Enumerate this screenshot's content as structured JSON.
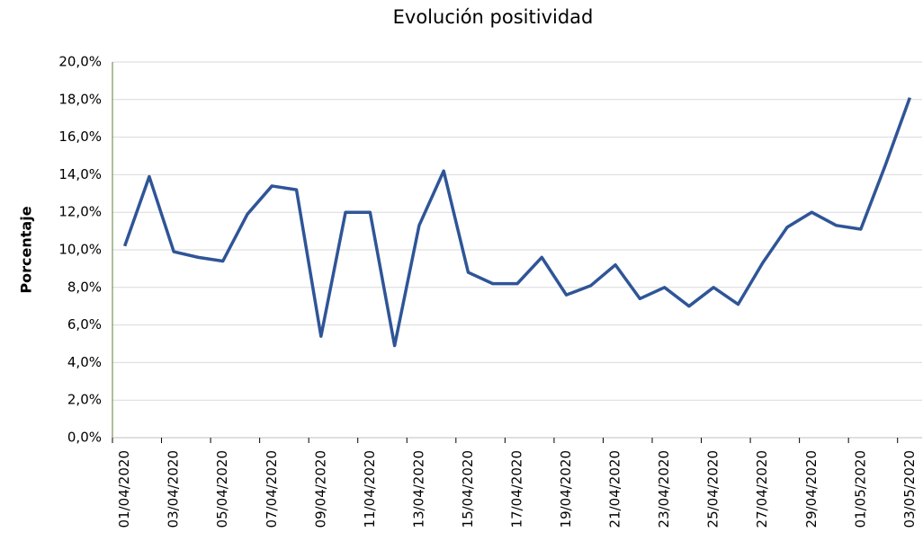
{
  "chart_data": {
    "type": "line",
    "title": "Evolución positividad",
    "y_label": "Porcentaje",
    "categories": [
      "01/04/2020",
      null,
      "03/04/2020",
      null,
      "05/04/2020",
      null,
      "07/04/2020",
      null,
      "09/04/2020",
      null,
      "11/04/2020",
      null,
      "13/04/2020",
      null,
      "15/04/2020",
      null,
      "17/04/2020",
      null,
      "19/04/2020",
      null,
      "21/04/2020",
      null,
      "23/04/2020",
      null,
      "25/04/2020",
      null,
      "27/04/2020",
      null,
      "29/04/2020",
      null,
      "01/05/2020",
      null,
      "03/05/2020"
    ],
    "values": [
      10.2,
      13.9,
      9.9,
      9.6,
      9.4,
      11.9,
      13.4,
      13.2,
      5.4,
      12.0,
      12.0,
      4.9,
      11.3,
      14.2,
      8.8,
      8.2,
      8.2,
      9.6,
      7.6,
      8.1,
      9.2,
      7.4,
      8.0,
      7.0,
      8.0,
      7.1,
      9.3,
      11.2,
      12.0,
      11.3,
      11.1,
      14.5,
      18.1
    ],
    "color": "#2f5597",
    "ylim": [
      0,
      20
    ],
    "yticks": [
      {
        "value": 0,
        "label": "0,0%"
      },
      {
        "value": 2,
        "label": "2,0%"
      },
      {
        "value": 4,
        "label": "4,0%"
      },
      {
        "value": 6,
        "label": "6,0%"
      },
      {
        "value": 8,
        "label": "8,0%"
      },
      {
        "value": 10,
        "label": "10,0%"
      },
      {
        "value": 12,
        "label": "12,0%"
      },
      {
        "value": 14,
        "label": "14,0%"
      },
      {
        "value": 16,
        "label": "16,0%"
      },
      {
        "value": 18,
        "label": "18,0%"
      },
      {
        "value": 20,
        "label": "20,0%"
      }
    ],
    "grid": true
  }
}
